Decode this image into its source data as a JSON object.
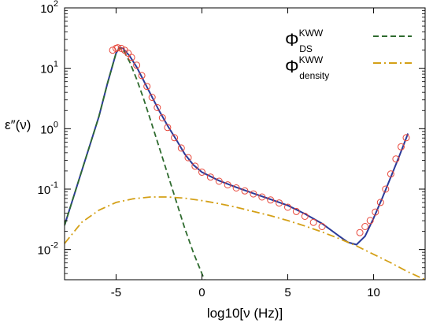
{
  "chart_data": {
    "type": "scatter",
    "title": "",
    "xlabel": "log10[ν (Hz)]",
    "ylabel": "ε″(ν)",
    "xlim": [
      -8,
      13
    ],
    "ylim_log10": [
      -2.5,
      2
    ],
    "y_scale": "log",
    "x_ticks": [
      -5,
      0,
      5,
      10
    ],
    "x_tick_labels": [
      "-5",
      "0",
      "5",
      "10"
    ],
    "y_ticks_log10": [
      -2,
      -1,
      0,
      1,
      2
    ],
    "y_tick_labels": [
      {
        "base": "10",
        "exp": "-2"
      },
      {
        "base": "10",
        "exp": "-1"
      },
      {
        "base": "10",
        "exp": "0"
      },
      {
        "base": "10",
        "exp": "1"
      },
      {
        "base": "10",
        "exp": "2"
      }
    ],
    "grid": false,
    "legend_position": "top-right",
    "colors": {
      "data": "#e8473a",
      "fit": "#2b3a99",
      "ds": "#2e6b2e",
      "density": "#d4a017"
    },
    "series": [
      {
        "kind": "points",
        "marker": "open-circle",
        "color": "#e8473a",
        "x": [
          -5.2,
          -5.0,
          -4.9,
          -4.7,
          -4.5,
          -4.3,
          -4.1,
          -3.8,
          -3.5,
          -3.2,
          -2.9,
          -2.6,
          -2.3,
          -2.0,
          -1.6,
          -1.2,
          -0.8,
          -0.4,
          0.0,
          0.5,
          1.0,
          1.5,
          2.0,
          2.5,
          3.0,
          3.5,
          4.0,
          4.5,
          5.0,
          5.5,
          6.0,
          6.5,
          7.0,
          9.2,
          9.5,
          9.8,
          10.1,
          10.4,
          10.7,
          11.0,
          11.3,
          11.6,
          11.9
        ],
        "log10y": [
          1.3,
          1.33,
          1.34,
          1.33,
          1.3,
          1.25,
          1.18,
          1.05,
          0.88,
          0.7,
          0.52,
          0.35,
          0.18,
          0.02,
          -0.15,
          -0.32,
          -0.48,
          -0.62,
          -0.72,
          -0.8,
          -0.87,
          -0.93,
          -0.98,
          -1.03,
          -1.08,
          -1.13,
          -1.18,
          -1.23,
          -1.3,
          -1.37,
          -1.45,
          -1.55,
          -1.62,
          -1.72,
          -1.62,
          -1.52,
          -1.38,
          -1.22,
          -1.0,
          -0.75,
          -0.5,
          -0.3,
          -0.15
        ]
      },
      {
        "kind": "line",
        "color": "#2b3a99",
        "dash": "solid",
        "x": [
          -8,
          -7,
          -6,
          -5.5,
          -5.0,
          -4.8,
          -4.6,
          -4.2,
          -3.8,
          -3.4,
          -3.0,
          -2.5,
          -2.0,
          -1.5,
          -1.0,
          -0.5,
          0.0,
          1.0,
          2.0,
          3.0,
          4.0,
          5.0,
          6.0,
          7.0,
          8.0,
          8.5,
          9.0,
          9.5,
          10.0,
          10.5,
          11.0,
          11.5,
          12.0
        ],
        "log10y": [
          -1.6,
          -0.7,
          0.2,
          0.75,
          1.25,
          1.34,
          1.33,
          1.2,
          1.02,
          0.8,
          0.58,
          0.3,
          0.05,
          -0.18,
          -0.42,
          -0.6,
          -0.72,
          -0.86,
          -0.97,
          -1.07,
          -1.17,
          -1.27,
          -1.41,
          -1.57,
          -1.78,
          -1.88,
          -1.92,
          -1.78,
          -1.48,
          -1.15,
          -0.8,
          -0.45,
          -0.08
        ]
      },
      {
        "kind": "line",
        "name": "Φ_DS^KWW",
        "color": "#2e6b2e",
        "dash": "dashed",
        "x": [
          -8,
          -7,
          -6,
          -5.5,
          -5.0,
          -4.8,
          -4.6,
          -4.2,
          -3.8,
          -3.4,
          -3.0,
          -2.5,
          -2.0,
          -1.5,
          -1.0,
          -0.5,
          0.0,
          0.3
        ],
        "log10y": [
          -1.6,
          -0.7,
          0.2,
          0.75,
          1.25,
          1.33,
          1.31,
          1.1,
          0.82,
          0.5,
          0.15,
          -0.3,
          -0.75,
          -1.2,
          -1.65,
          -2.05,
          -2.4,
          -2.6
        ]
      },
      {
        "kind": "line",
        "name": "Φ_density^KWW",
        "color": "#d4a017",
        "dash": "dashdot",
        "x": [
          -8,
          -7,
          -6,
          -5,
          -4,
          -3,
          -2,
          -1,
          0,
          1,
          2,
          3,
          4,
          5,
          6,
          7,
          8,
          9,
          10,
          11,
          12,
          13
        ],
        "log10y": [
          -1.9,
          -1.55,
          -1.35,
          -1.22,
          -1.16,
          -1.13,
          -1.13,
          -1.15,
          -1.19,
          -1.24,
          -1.3,
          -1.37,
          -1.44,
          -1.52,
          -1.61,
          -1.71,
          -1.82,
          -1.94,
          -2.08,
          -2.22,
          -2.37,
          -2.5
        ]
      }
    ],
    "legend": [
      {
        "symbol": "Φ",
        "sup": "KWW",
        "sub": "DS",
        "color": "#2e6b2e",
        "dash": "dashed"
      },
      {
        "symbol": "Φ",
        "sup": "KWW",
        "sub": "density",
        "color": "#d4a017",
        "dash": "dashdot"
      }
    ]
  }
}
